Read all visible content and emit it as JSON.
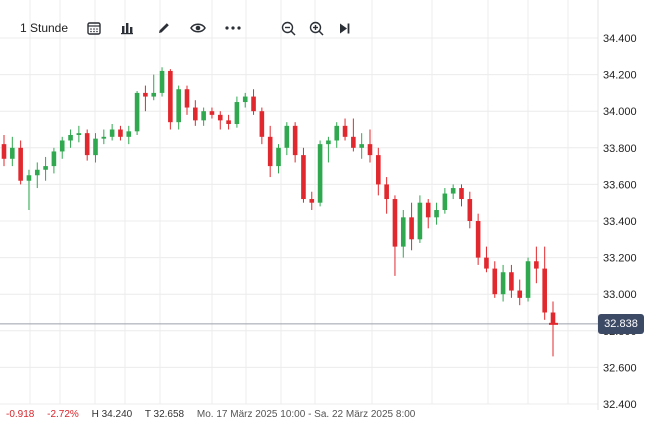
{
  "toolbar": {
    "interval_label": "1 Stunde",
    "icons": [
      "calendar-icon",
      "bar-chart-icon",
      "pencil-icon",
      "eye-icon",
      "more-icon",
      "zoom-out-icon",
      "zoom-in-icon",
      "skip-to-end-icon"
    ]
  },
  "last_price": "32.838",
  "footer": {
    "change_abs": "-0.918",
    "change_pct": "-2.72%",
    "high": "H 34.240",
    "low": "T 32.658",
    "range": "Mo. 17 März 2025 10:00 - Sa. 22 März 2025 8:00"
  },
  "colors": {
    "up": "#2fa84f",
    "down": "#e0282e",
    "price_tag": "#3d4a66"
  },
  "chart_data": {
    "type": "candlestick",
    "y_ticks": [
      "34.400",
      "34.200",
      "34.000",
      "33.800",
      "33.600",
      "33.400",
      "33.200",
      "33.000",
      "32.800",
      "32.600",
      "32.400"
    ],
    "ylim": [
      32.4,
      34.45
    ],
    "grid": true,
    "last_value": 32.838,
    "candles": [
      [
        33.82,
        33.87,
        33.7,
        33.74
      ],
      [
        33.74,
        33.86,
        33.7,
        33.8
      ],
      [
        33.8,
        33.84,
        33.6,
        33.62
      ],
      [
        33.62,
        33.68,
        33.46,
        33.65
      ],
      [
        33.65,
        33.72,
        33.58,
        33.68
      ],
      [
        33.68,
        33.75,
        33.62,
        33.7
      ],
      [
        33.7,
        33.8,
        33.66,
        33.78
      ],
      [
        33.78,
        33.86,
        33.74,
        33.84
      ],
      [
        33.84,
        33.9,
        33.8,
        33.87
      ],
      [
        33.87,
        33.92,
        33.83,
        33.88
      ],
      [
        33.88,
        33.9,
        33.73,
        33.76
      ],
      [
        33.76,
        33.88,
        33.72,
        33.85
      ],
      [
        33.85,
        33.9,
        33.82,
        33.86
      ],
      [
        33.86,
        33.93,
        33.84,
        33.9
      ],
      [
        33.9,
        33.92,
        33.84,
        33.86
      ],
      [
        33.86,
        33.92,
        33.82,
        33.89
      ],
      [
        33.89,
        34.11,
        33.87,
        34.1
      ],
      [
        34.1,
        34.14,
        34.0,
        34.08
      ],
      [
        34.08,
        34.2,
        34.06,
        34.1
      ],
      [
        34.1,
        34.24,
        34.08,
        34.22
      ],
      [
        34.22,
        34.23,
        33.9,
        33.94
      ],
      [
        33.94,
        34.14,
        33.9,
        34.12
      ],
      [
        34.12,
        34.14,
        33.98,
        34.02
      ],
      [
        34.02,
        34.06,
        33.92,
        33.95
      ],
      [
        33.95,
        34.02,
        33.92,
        34.0
      ],
      [
        34.0,
        34.02,
        33.96,
        33.98
      ],
      [
        33.98,
        34.0,
        33.9,
        33.95
      ],
      [
        33.95,
        33.98,
        33.9,
        33.93
      ],
      [
        33.93,
        34.08,
        33.91,
        34.05
      ],
      [
        34.05,
        34.1,
        34.02,
        34.08
      ],
      [
        34.08,
        34.12,
        33.98,
        34.0
      ],
      [
        34.0,
        34.02,
        33.82,
        33.86
      ],
      [
        33.86,
        33.92,
        33.64,
        33.7
      ],
      [
        33.7,
        33.82,
        33.66,
        33.8
      ],
      [
        33.8,
        33.94,
        33.76,
        33.92
      ],
      [
        33.92,
        33.94,
        33.72,
        33.76
      ],
      [
        33.76,
        33.8,
        33.5,
        33.52
      ],
      [
        33.52,
        33.56,
        33.46,
        33.5
      ],
      [
        33.5,
        33.84,
        33.48,
        33.82
      ],
      [
        33.82,
        33.86,
        33.72,
        33.84
      ],
      [
        33.84,
        33.94,
        33.8,
        33.92
      ],
      [
        33.92,
        33.96,
        33.84,
        33.86
      ],
      [
        33.86,
        33.96,
        33.78,
        33.8
      ],
      [
        33.8,
        33.88,
        33.74,
        33.82
      ],
      [
        33.82,
        33.9,
        33.72,
        33.76
      ],
      [
        33.76,
        33.8,
        33.54,
        33.6
      ],
      [
        33.6,
        33.64,
        33.44,
        33.52
      ],
      [
        33.52,
        33.54,
        33.1,
        33.26
      ],
      [
        33.26,
        33.46,
        33.2,
        33.42
      ],
      [
        33.42,
        33.5,
        33.24,
        33.3
      ],
      [
        33.3,
        33.54,
        33.28,
        33.5
      ],
      [
        33.5,
        33.52,
        33.36,
        33.42
      ],
      [
        33.42,
        33.5,
        33.38,
        33.46
      ],
      [
        33.46,
        33.58,
        33.44,
        33.55
      ],
      [
        33.55,
        33.6,
        33.52,
        33.58
      ],
      [
        33.58,
        33.6,
        33.48,
        33.52
      ],
      [
        33.52,
        33.56,
        33.36,
        33.4
      ],
      [
        33.4,
        33.44,
        33.16,
        33.2
      ],
      [
        33.2,
        33.26,
        33.12,
        33.14
      ],
      [
        33.14,
        33.18,
        32.98,
        33.0
      ],
      [
        33.0,
        33.16,
        32.96,
        33.12
      ],
      [
        33.12,
        33.16,
        32.98,
        33.02
      ],
      [
        33.02,
        33.08,
        32.94,
        32.98
      ],
      [
        32.98,
        33.2,
        32.96,
        33.18
      ],
      [
        33.18,
        33.26,
        33.06,
        33.14
      ],
      [
        33.14,
        33.26,
        32.86,
        32.9
      ],
      [
        32.9,
        32.96,
        32.66,
        32.84
      ]
    ]
  }
}
